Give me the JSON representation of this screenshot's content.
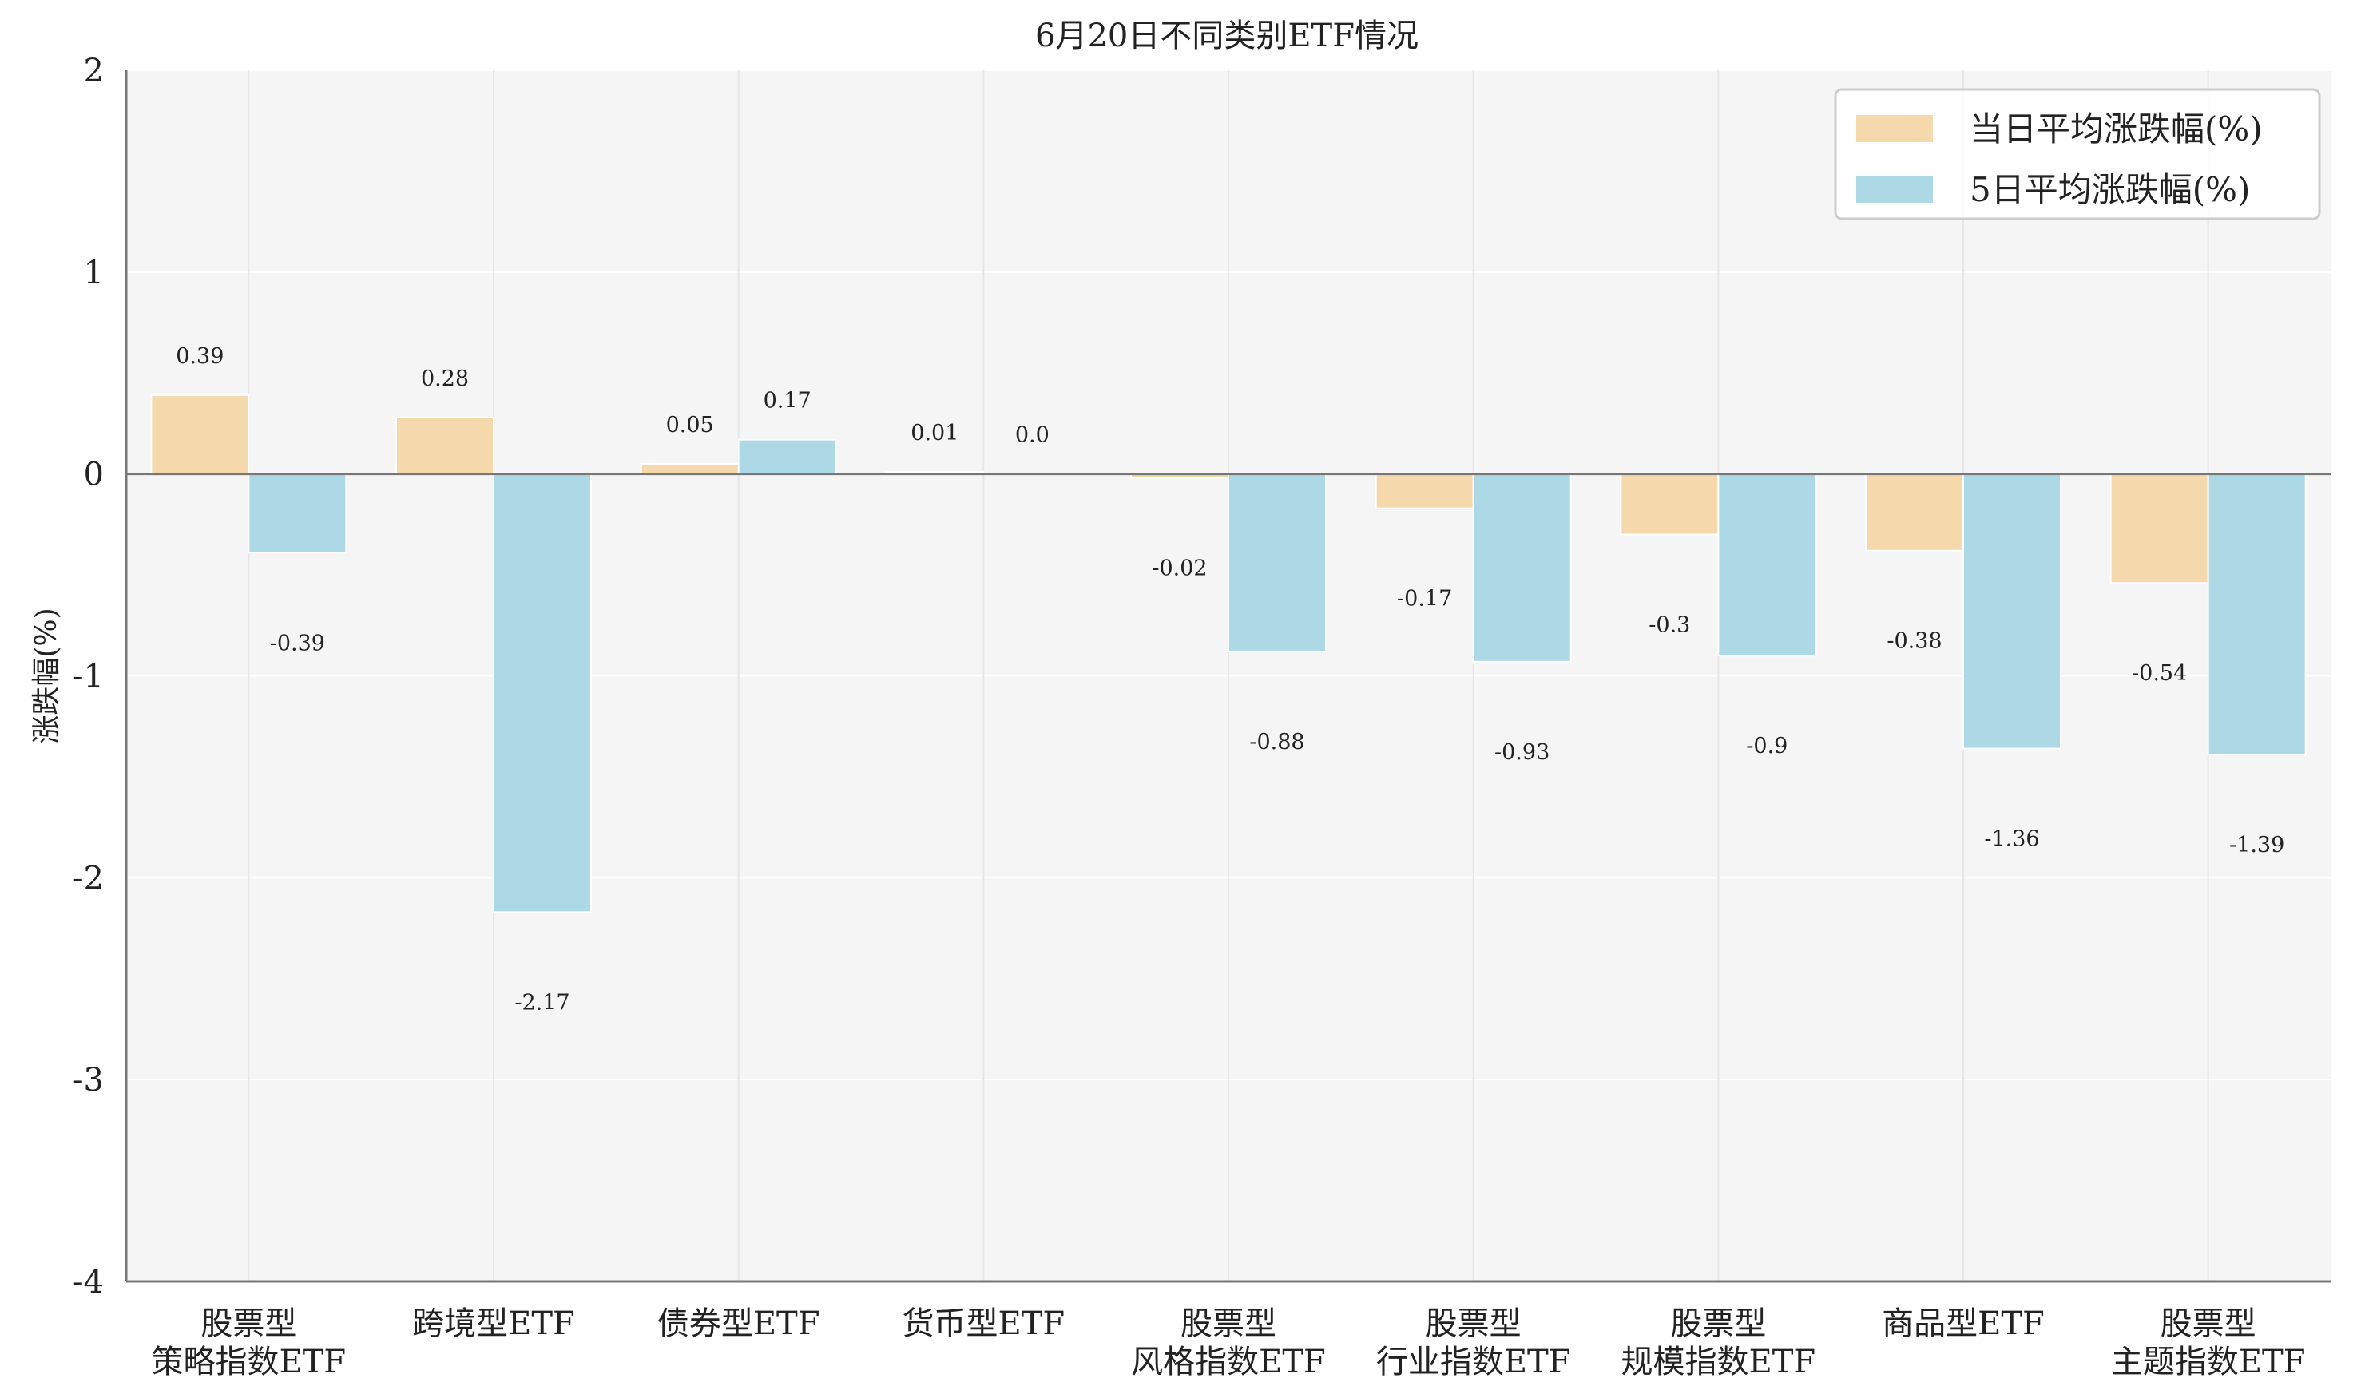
{
  "chart_data": {
    "type": "bar",
    "title": "6月20日不同类别ETF情况",
    "ylabel": "涨跌幅(%)",
    "xlabel": "",
    "ylim": [
      -4,
      2
    ],
    "yticks": [
      -4,
      -3,
      -2,
      -1,
      0,
      1,
      2
    ],
    "grid": true,
    "legend_position": "top-right",
    "categories": [
      [
        "股票型",
        "策略指数ETF"
      ],
      [
        "跨境型ETF"
      ],
      [
        "债券型ETF"
      ],
      [
        "货币型ETF"
      ],
      [
        "股票型",
        "风格指数ETF"
      ],
      [
        "股票型",
        "行业指数ETF"
      ],
      [
        "股票型",
        "规模指数ETF"
      ],
      [
        "商品型ETF"
      ],
      [
        "股票型",
        "主题指数ETF"
      ]
    ],
    "series": [
      {
        "name": "当日平均涨跌幅(%)",
        "color": "#f5d9ad",
        "values": [
          0.39,
          0.28,
          0.05,
          0.01,
          -0.02,
          -0.17,
          -0.3,
          -0.38,
          -0.54
        ],
        "labels": [
          "0.39",
          "0.28",
          "0.05",
          "0.01",
          "-0.02",
          "-0.17",
          "-0.3",
          "-0.38",
          "-0.54"
        ]
      },
      {
        "name": "5日平均涨跌幅(%)",
        "color": "#add8e6",
        "values": [
          -0.39,
          -2.17,
          0.17,
          0.0,
          -0.88,
          -0.93,
          -0.9,
          -1.36,
          -1.39
        ],
        "labels": [
          "-0.39",
          "-2.17",
          "0.17",
          "0.0",
          "-0.88",
          "-0.93",
          "-0.9",
          "-1.36",
          "-1.39"
        ]
      }
    ],
    "colors": {
      "plot_background": "#f5f5f5",
      "grid": "#e6e6e6",
      "axis": "#777777",
      "zero_line": "#777777"
    }
  }
}
